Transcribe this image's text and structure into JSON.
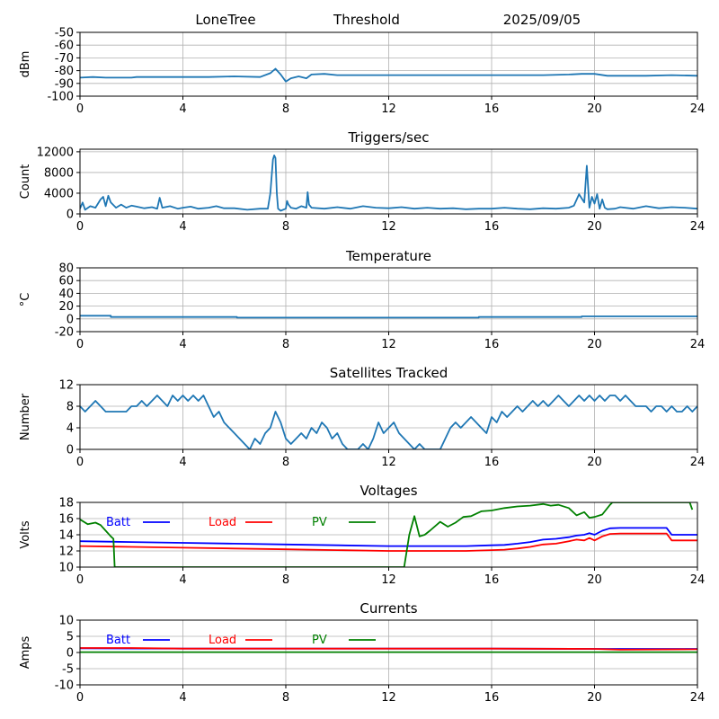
{
  "header": {
    "station": "LoneTree",
    "mode": "Threshold",
    "date": "2025/09/05"
  },
  "colors": {
    "series_default": "#1f77b4",
    "batt": "#0000ff",
    "load": "#ff0000",
    "pv": "#008000",
    "grid": "#b0b0b0"
  },
  "chart_data": [
    {
      "type": "line",
      "title": "",
      "xlabel": "",
      "ylabel": "dBm",
      "xlim": [
        0,
        24
      ],
      "ylim": [
        -100,
        -50
      ],
      "xticks": [
        0,
        4,
        8,
        12,
        16,
        20,
        24
      ],
      "yticks": [
        -100,
        -90,
        -80,
        -70,
        -60,
        -50
      ],
      "grid": true,
      "series": [
        {
          "color": "#1f77b4",
          "x": [
            0,
            0.5,
            1,
            2,
            2.2,
            3,
            4,
            5,
            6,
            7,
            7.4,
            7.6,
            7.8,
            8.0,
            8.2,
            8.5,
            8.8,
            9.0,
            9.5,
            10,
            11,
            12,
            13,
            14,
            15,
            16,
            17,
            18,
            19,
            19.5,
            20,
            20.5,
            21,
            22,
            23,
            24
          ],
          "y": [
            -85.5,
            -85,
            -85.5,
            -85.5,
            -85,
            -85,
            -85,
            -85,
            -84.5,
            -85,
            -82,
            -78.5,
            -83,
            -88.5,
            -86,
            -84.5,
            -86,
            -83,
            -82.5,
            -83.5,
            -83.5,
            -83.5,
            -83.5,
            -83.5,
            -83.5,
            -83.5,
            -83.5,
            -83.5,
            -83,
            -82.5,
            -82.5,
            -84,
            -84,
            -84,
            -83.5,
            -84
          ]
        }
      ]
    },
    {
      "type": "line",
      "title": "Triggers/sec",
      "xlabel": "",
      "ylabel": "Count",
      "xlim": [
        0,
        24
      ],
      "ylim": [
        0,
        12500
      ],
      "xticks": [
        0,
        4,
        8,
        12,
        16,
        20,
        24
      ],
      "yticks": [
        0,
        4000,
        8000,
        12000
      ],
      "grid": true,
      "series": [
        {
          "color": "#1f77b4",
          "x": [
            0,
            0.1,
            0.2,
            0.4,
            0.6,
            0.8,
            0.9,
            1.0,
            1.1,
            1.2,
            1.4,
            1.6,
            1.8,
            2.0,
            2.2,
            2.5,
            2.8,
            3.0,
            3.1,
            3.2,
            3.5,
            3.8,
            4.0,
            4.3,
            4.6,
            5.0,
            5.3,
            5.6,
            6.0,
            6.5,
            7.0,
            7.3,
            7.4,
            7.5,
            7.55,
            7.6,
            7.65,
            7.7,
            7.8,
            8.0,
            8.05,
            8.1,
            8.2,
            8.4,
            8.6,
            8.8,
            8.85,
            8.9,
            9.0,
            9.5,
            10,
            10.5,
            11,
            11.5,
            12,
            12.5,
            13,
            13.5,
            14,
            14.5,
            15,
            15.5,
            16,
            16.5,
            17,
            17.5,
            18,
            18.5,
            19,
            19.2,
            19.4,
            19.6,
            19.7,
            19.8,
            19.9,
            20.0,
            20.1,
            20.2,
            20.3,
            20.4,
            20.5,
            20.8,
            21,
            21.5,
            22,
            22.5,
            23,
            23.5,
            24
          ],
          "y": [
            1000,
            2200,
            800,
            1500,
            1200,
            2800,
            3300,
            1500,
            3500,
            2200,
            1200,
            1800,
            1200,
            1600,
            1400,
            1100,
            1300,
            1000,
            3100,
            1200,
            1500,
            1000,
            1200,
            1400,
            1000,
            1200,
            1500,
            1100,
            1100,
            800,
            1000,
            1000,
            4000,
            10500,
            11300,
            10800,
            4000,
            1000,
            600,
            1000,
            2500,
            1800,
            1200,
            1000,
            1500,
            1200,
            4200,
            1800,
            1200,
            1000,
            1300,
            1000,
            1500,
            1200,
            1100,
            1300,
            1000,
            1200,
            1000,
            1100,
            900,
            1000,
            1000,
            1200,
            1000,
            900,
            1100,
            1000,
            1200,
            1600,
            3800,
            2200,
            9300,
            1200,
            3300,
            2000,
            3800,
            1000,
            2800,
            1200,
            900,
            1000,
            1300,
            1000,
            1500,
            1100,
            1300,
            1200,
            1000
          ]
        }
      ]
    },
    {
      "type": "line",
      "title": "Temperature",
      "xlabel": "",
      "ylabel": "°C",
      "xlim": [
        0,
        24
      ],
      "ylim": [
        -20,
        80
      ],
      "xticks": [
        0,
        4,
        8,
        12,
        16,
        20,
        24
      ],
      "yticks": [
        -20,
        0,
        20,
        40,
        60,
        80
      ],
      "grid": true,
      "series": [
        {
          "color": "#1f77b4",
          "x": [
            0,
            1.2,
            1.2,
            6.1,
            6.1,
            15.5,
            15.5,
            19.5,
            19.5,
            24
          ],
          "y": [
            5,
            5,
            3,
            3,
            2,
            2,
            3,
            3,
            4,
            4
          ]
        }
      ]
    },
    {
      "type": "line",
      "title": "Satellites Tracked",
      "xlabel": "",
      "ylabel": "Number",
      "xlim": [
        0,
        24
      ],
      "ylim": [
        0,
        12
      ],
      "xticks": [
        0,
        4,
        8,
        12,
        16,
        20,
        24
      ],
      "yticks": [
        0,
        4,
        8,
        12
      ],
      "grid": true,
      "series": [
        {
          "color": "#1f77b4",
          "x": [
            0,
            0.2,
            0.4,
            0.6,
            0.8,
            1.0,
            1.2,
            1.5,
            1.8,
            2.0,
            2.2,
            2.4,
            2.6,
            2.8,
            3.0,
            3.2,
            3.4,
            3.6,
            3.8,
            4.0,
            4.2,
            4.4,
            4.6,
            4.8,
            5.0,
            5.2,
            5.4,
            5.6,
            5.8,
            6.0,
            6.2,
            6.4,
            6.6,
            6.8,
            7.0,
            7.2,
            7.4,
            7.6,
            7.8,
            8.0,
            8.2,
            8.4,
            8.6,
            8.8,
            9.0,
            9.2,
            9.4,
            9.6,
            9.8,
            10.0,
            10.2,
            10.4,
            10.6,
            10.8,
            11.0,
            11.2,
            11.4,
            11.6,
            11.8,
            12.0,
            12.2,
            12.4,
            12.6,
            12.8,
            13.0,
            13.2,
            13.4,
            13.6,
            13.8,
            14.0,
            14.2,
            14.4,
            14.6,
            14.8,
            15.0,
            15.2,
            15.4,
            15.6,
            15.8,
            16.0,
            16.2,
            16.4,
            16.6,
            16.8,
            17.0,
            17.2,
            17.4,
            17.6,
            17.8,
            18.0,
            18.2,
            18.4,
            18.6,
            18.8,
            19.0,
            19.2,
            19.4,
            19.6,
            19.8,
            20.0,
            20.2,
            20.4,
            20.6,
            20.8,
            21.0,
            21.2,
            21.4,
            21.6,
            21.8,
            22.0,
            22.2,
            22.4,
            22.6,
            22.8,
            23.0,
            23.2,
            23.4,
            23.6,
            23.8,
            24
          ],
          "y": [
            8,
            7,
            8,
            9,
            8,
            7,
            7,
            7,
            7,
            8,
            8,
            9,
            8,
            9,
            10,
            9,
            8,
            10,
            9,
            10,
            9,
            10,
            9,
            10,
            8,
            6,
            7,
            5,
            4,
            3,
            2,
            1,
            0,
            2,
            1,
            3,
            4,
            7,
            5,
            2,
            1,
            2,
            3,
            2,
            4,
            3,
            5,
            4,
            2,
            3,
            1,
            0,
            0,
            0,
            1,
            0,
            2,
            5,
            3,
            4,
            5,
            3,
            2,
            1,
            0,
            1,
            0,
            0,
            0,
            0,
            2,
            4,
            5,
            4,
            5,
            6,
            5,
            4,
            3,
            6,
            5,
            7,
            6,
            7,
            8,
            7,
            8,
            9,
            8,
            9,
            8,
            9,
            10,
            9,
            8,
            9,
            10,
            9,
            10,
            9,
            10,
            9,
            10,
            10,
            9,
            10,
            9,
            8,
            8,
            8,
            7,
            8,
            8,
            7,
            8,
            7,
            7,
            8,
            7,
            8
          ]
        }
      ]
    },
    {
      "type": "line",
      "title": "Voltages",
      "xlabel": "",
      "ylabel": "Volts",
      "xlim": [
        0,
        24
      ],
      "ylim": [
        10,
        18
      ],
      "xticks": [
        0,
        4,
        8,
        12,
        16,
        20,
        24
      ],
      "yticks": [
        10,
        12,
        14,
        16,
        18
      ],
      "grid": true,
      "legend": "top-left, horizontal",
      "series": [
        {
          "name": "Batt",
          "color": "#0000ff",
          "x": [
            0,
            2,
            4,
            6,
            8,
            10,
            12,
            14,
            15,
            16,
            16.5,
            17,
            17.5,
            18,
            18.5,
            19,
            19.3,
            19.6,
            19.8,
            20,
            20.3,
            20.6,
            21,
            22,
            22.8,
            23,
            24
          ],
          "y": [
            13.2,
            13.1,
            13.0,
            12.9,
            12.8,
            12.7,
            12.6,
            12.6,
            12.6,
            12.7,
            12.75,
            12.9,
            13.1,
            13.4,
            13.5,
            13.7,
            13.9,
            14.0,
            14.2,
            14.0,
            14.5,
            14.8,
            14.85,
            14.85,
            14.85,
            14.0,
            14.0
          ]
        },
        {
          "name": "Load",
          "color": "#ff0000",
          "x": [
            0,
            2,
            4,
            6,
            8,
            10,
            12,
            14,
            15,
            16,
            16.5,
            17,
            17.5,
            18,
            18.5,
            19,
            19.3,
            19.6,
            19.8,
            20,
            20.3,
            20.6,
            21,
            22,
            22.8,
            23,
            24
          ],
          "y": [
            12.6,
            12.5,
            12.4,
            12.3,
            12.2,
            12.1,
            12.0,
            12.0,
            12.0,
            12.1,
            12.15,
            12.3,
            12.5,
            12.8,
            12.9,
            13.2,
            13.4,
            13.3,
            13.6,
            13.3,
            13.8,
            14.1,
            14.15,
            14.15,
            14.15,
            13.3,
            13.3
          ]
        },
        {
          "name": "PV",
          "color": "#008000",
          "x": [
            0,
            0.3,
            0.6,
            0.8,
            1.0,
            1.2,
            1.3,
            1.35,
            12.6,
            12.8,
            13.0,
            13.2,
            13.4,
            13.6,
            14.0,
            14.3,
            14.6,
            14.9,
            15.2,
            15.6,
            16.0,
            16.5,
            17.0,
            17.5,
            18.0,
            18.3,
            18.6,
            19.0,
            19.3,
            19.6,
            19.8,
            20.0,
            20.3,
            20.6,
            20.7,
            23.7,
            23.8
          ],
          "y": [
            15.9,
            15.3,
            15.5,
            15.2,
            14.5,
            13.8,
            13.5,
            10.0,
            10.0,
            14.0,
            16.3,
            13.8,
            14.0,
            14.5,
            15.6,
            15.0,
            15.5,
            16.2,
            16.3,
            16.9,
            17.0,
            17.3,
            17.5,
            17.6,
            17.8,
            17.6,
            17.7,
            17.3,
            16.4,
            16.8,
            16.1,
            16.2,
            16.5,
            17.7,
            18.0,
            18.0,
            17.1
          ]
        }
      ]
    },
    {
      "type": "line",
      "title": "Currents",
      "xlabel": "",
      "ylabel": "Amps",
      "xlim": [
        0,
        24
      ],
      "ylim": [
        -10,
        10
      ],
      "xticks": [
        0,
        4,
        8,
        12,
        16,
        20,
        24
      ],
      "yticks": [
        -10,
        -5,
        0,
        5,
        10
      ],
      "grid": true,
      "legend": "top-left, horizontal",
      "series": [
        {
          "name": "Batt",
          "color": "#0000ff",
          "x": [
            0,
            4,
            8,
            12,
            16,
            20,
            24
          ],
          "y": [
            1.3,
            1.2,
            1.2,
            1.2,
            1.2,
            1.1,
            1.1
          ]
        },
        {
          "name": "Load",
          "color": "#ff0000",
          "x": [
            0,
            2,
            4,
            8,
            12,
            16,
            20,
            21,
            24
          ],
          "y": [
            1.4,
            1.4,
            1.2,
            1.2,
            1.2,
            1.2,
            1.1,
            0.9,
            1.0
          ]
        },
        {
          "name": "PV",
          "color": "#008000",
          "x": [
            0,
            4,
            8,
            12,
            16,
            20,
            24
          ],
          "y": [
            0.1,
            0.1,
            0.1,
            0.1,
            0.1,
            0.1,
            0.1
          ]
        }
      ]
    }
  ]
}
